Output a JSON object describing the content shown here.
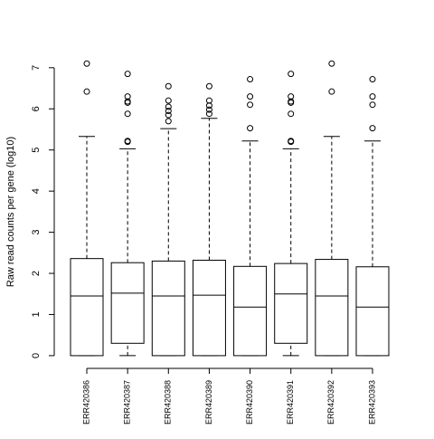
{
  "chart_data": {
    "type": "boxplot",
    "y_label": "Raw read counts per gene (log10)",
    "categories": [
      "ERR420386",
      "ERR420387",
      "ERR420388",
      "ERR420389",
      "ERR420390",
      "ERR420391",
      "ERR420392",
      "ERR420393"
    ],
    "boxes": [
      {
        "low": 0,
        "q1": 0,
        "median": 1.45,
        "q3": 2.36,
        "high": 5.33,
        "outliers": [
          6.42,
          7.1
        ]
      },
      {
        "low": 0,
        "q1": 0.3,
        "median": 1.52,
        "q3": 2.26,
        "high": 5.03,
        "outliers": [
          5.2,
          5.22,
          5.88,
          6.15,
          6.18,
          6.3,
          6.85
        ]
      },
      {
        "low": 0,
        "q1": 0,
        "median": 1.45,
        "q3": 2.3,
        "high": 5.52,
        "outliers": [
          5.7,
          5.85,
          5.95,
          6.05,
          6.2,
          6.55
        ]
      },
      {
        "low": 0,
        "q1": 0,
        "median": 1.47,
        "q3": 2.32,
        "high": 5.77,
        "outliers": [
          5.88,
          5.98,
          6.08,
          6.2,
          6.55
        ]
      },
      {
        "low": 0,
        "q1": 0,
        "median": 1.18,
        "q3": 2.17,
        "high": 5.22,
        "outliers": [
          5.53,
          6.1,
          6.3,
          6.72
        ]
      },
      {
        "low": 0,
        "q1": 0.3,
        "median": 1.5,
        "q3": 2.24,
        "high": 5.03,
        "outliers": [
          5.2,
          5.22,
          5.88,
          6.15,
          6.18,
          6.3,
          6.85
        ]
      },
      {
        "low": 0,
        "q1": 0,
        "median": 1.45,
        "q3": 2.34,
        "high": 5.33,
        "outliers": [
          6.42,
          7.1
        ]
      },
      {
        "low": 0,
        "q1": 0,
        "median": 1.18,
        "q3": 2.16,
        "high": 5.22,
        "outliers": [
          5.53,
          6.1,
          6.3,
          6.72
        ]
      }
    ],
    "color": "#000000",
    "ylim": [
      -0.31,
      7.37
    ],
    "yticks": [
      0,
      1,
      2,
      3,
      4,
      5,
      6,
      7
    ],
    "grid": false
  }
}
